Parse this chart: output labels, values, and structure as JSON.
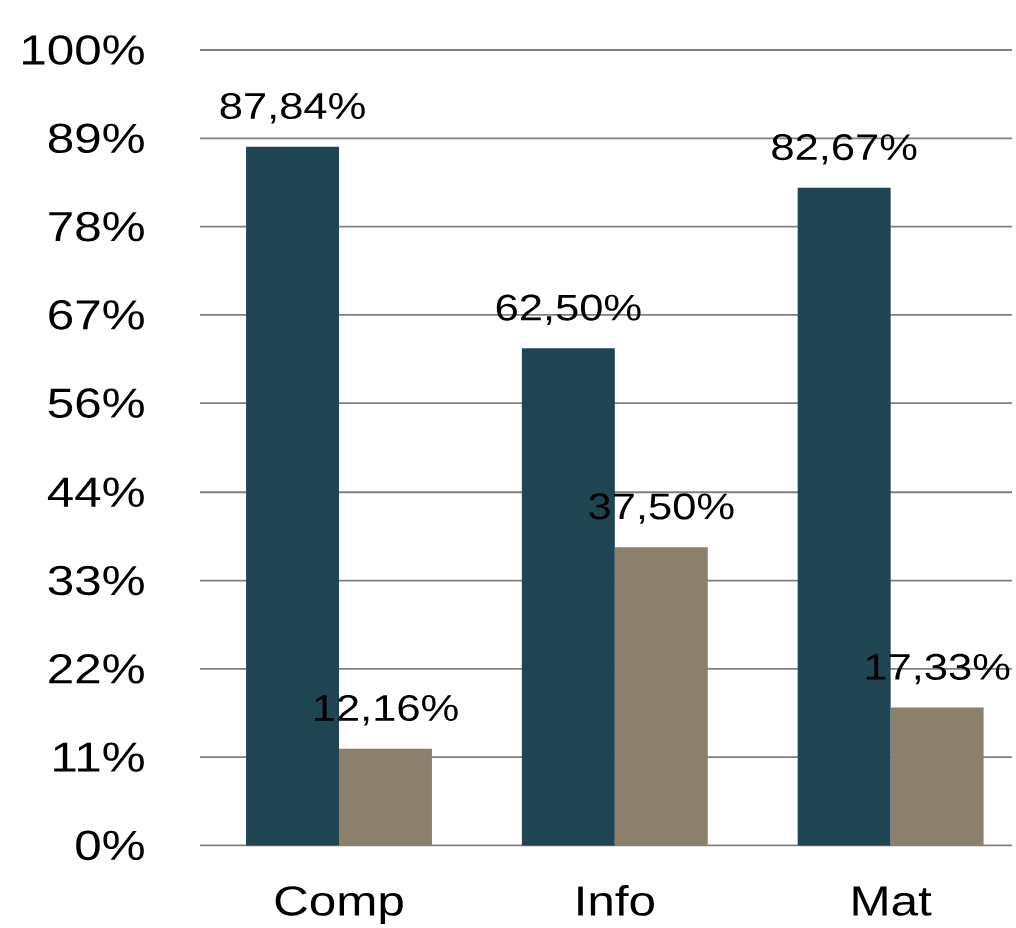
{
  "chart_data": {
    "type": "bar",
    "categories": [
      "Comp",
      "Info",
      "Mat"
    ],
    "series": [
      {
        "color": "#1f4452",
        "values": [
          87.84,
          62.5,
          82.67
        ],
        "value_labels": [
          "87,84%",
          "62,50%",
          "82,67%"
        ]
      },
      {
        "color": "#8b806c",
        "values": [
          12.16,
          37.5,
          17.33
        ],
        "value_labels": [
          "12,16%",
          "37,50%",
          "17,33%"
        ]
      }
    ],
    "ylim": [
      0,
      100
    ],
    "yticks": [
      {
        "value": 0,
        "label": "0%"
      },
      {
        "value": 11.1,
        "label": "11%"
      },
      {
        "value": 22.2,
        "label": "22%"
      },
      {
        "value": 33.3,
        "label": "33%"
      },
      {
        "value": 44.4,
        "label": "44%"
      },
      {
        "value": 55.6,
        "label": "56%"
      },
      {
        "value": 66.7,
        "label": "67%"
      },
      {
        "value": 77.8,
        "label": "78%"
      },
      {
        "value": 88.9,
        "label": "89%"
      },
      {
        "value": 100,
        "label": "100%"
      }
    ],
    "grid": "y"
  }
}
